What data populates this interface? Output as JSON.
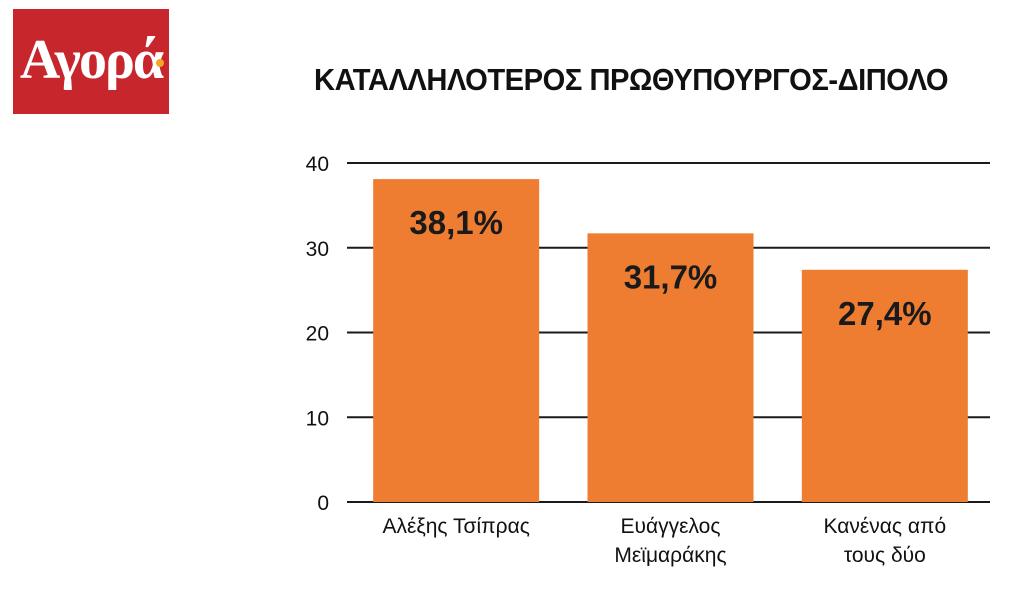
{
  "logo": {
    "text": "Αγορά",
    "bg_color": "#c8262d",
    "dot_color": "#f5a623"
  },
  "colors": {
    "bar": "#ee7d31",
    "grid": "#1a1a1a"
  },
  "chart_data": {
    "type": "bar",
    "title": "ΚΑΤΑΛΛΗΛΟΤΕΡΟΣ ΠΡΩΘΥΠΟΥΡΓΟΣ-ΔΙΠΟΛΟ",
    "categories": [
      [
        "Αλέξης Τσίπρας"
      ],
      [
        "Ευάγγελος",
        "Μεϊμαράκης"
      ],
      [
        "Κανένας από",
        "τους δύο"
      ]
    ],
    "values": [
      38.1,
      31.7,
      27.4
    ],
    "data_labels": [
      "38,1%",
      "31,7%",
      "27,4%"
    ],
    "yticks": [
      "0",
      "10",
      "20",
      "30",
      "40"
    ],
    "ylim": [
      0,
      40
    ],
    "grid": true,
    "legend": "none"
  }
}
